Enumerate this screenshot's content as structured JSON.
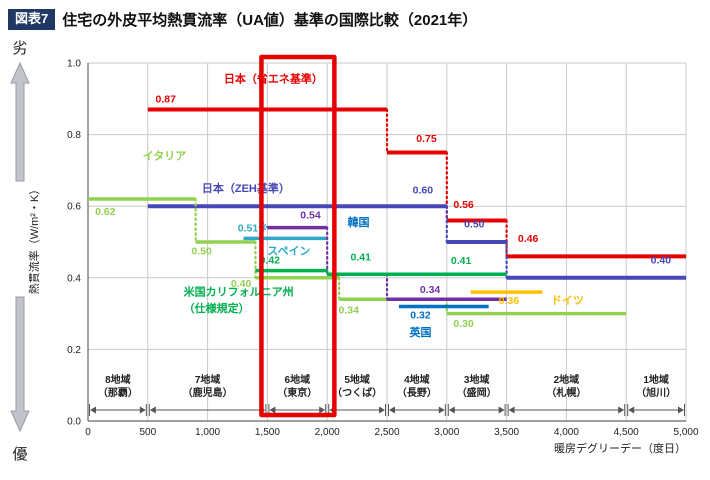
{
  "header": {
    "badge": "図表7",
    "title": "住宅の外皮平均熱貫流率（UA値）基準の国際比較（2021年）"
  },
  "chart_data": {
    "type": "line",
    "subtype": "step-comparison",
    "grid": true,
    "x": {
      "label": "暖房デグリーデー（度日）",
      "min": 0,
      "max": 5000,
      "ticks": [
        {
          "v": 0,
          "label": "0"
        },
        {
          "v": 500,
          "label": "500"
        },
        {
          "v": 1000,
          "label": "1,000"
        },
        {
          "v": 1500,
          "label": "1,500"
        },
        {
          "v": 2000,
          "label": "2,000"
        },
        {
          "v": 2500,
          "label": "2,500"
        },
        {
          "v": 3000,
          "label": "3,000"
        },
        {
          "v": 3500,
          "label": "3,500"
        },
        {
          "v": 4000,
          "label": "4,000"
        },
        {
          "v": 4500,
          "label": "4,500"
        },
        {
          "v": 5000,
          "label": "5,000"
        }
      ]
    },
    "y": {
      "label": "熱貫流率（W/m²・K）",
      "min": 0,
      "max": 1,
      "worse": "劣",
      "better": "優",
      "ticks": [
        {
          "v": 0,
          "label": "0.0"
        },
        {
          "v": 0.2,
          "label": "0.2"
        },
        {
          "v": 0.4,
          "label": "0.4"
        },
        {
          "v": 0.6,
          "label": "0.6"
        },
        {
          "v": 0.8,
          "label": "0.8"
        },
        {
          "v": 1,
          "label": "1.0"
        }
      ]
    },
    "zones": [
      {
        "name": "8地域",
        "city": "（那覇）",
        "from": 0,
        "to": 500
      },
      {
        "name": "7地域",
        "city": "（鹿児島）",
        "from": 500,
        "to": 1500
      },
      {
        "name": "6地域",
        "city": "（東京）",
        "from": 1500,
        "to": 2000
      },
      {
        "name": "5地域",
        "city": "（つくば）",
        "from": 2000,
        "to": 2500
      },
      {
        "name": "4地域",
        "city": "（長野）",
        "from": 2500,
        "to": 3000
      },
      {
        "name": "3地域",
        "city": "（盛岡）",
        "from": 3000,
        "to": 3500
      },
      {
        "name": "2地域",
        "city": "（札幌）",
        "from": 3500,
        "to": 4500
      },
      {
        "name": "1地域",
        "city": "（旭川）",
        "from": 4500,
        "to": 5000
      }
    ],
    "highlight": {
      "zone": "6地域（東京）",
      "from": 1450,
      "to": 2060,
      "color": "#e60000"
    },
    "series": [
      {
        "id": "japan_energy_std",
        "name": "日本（省エネ基準）",
        "color": "#e60000",
        "line_width": 4,
        "segments": [
          [
            500,
            2500,
            0.87
          ],
          [
            2500,
            3000,
            0.75
          ],
          [
            3000,
            3500,
            0.56
          ],
          [
            3500,
            5000,
            0.46
          ]
        ],
        "value_labels": [
          {
            "t": "0.87",
            "x": 650,
            "y": 0.89
          },
          {
            "t": "0.75",
            "x": 2830,
            "y": 0.78
          },
          {
            "t": "0.56",
            "x": 3140,
            "y": 0.595
          },
          {
            "t": "0.46",
            "x": 3680,
            "y": 0.5
          }
        ],
        "name_labels": [
          {
            "t": "日本（省エネ基準）",
            "x": 1550,
            "y": 0.945
          }
        ]
      },
      {
        "id": "japan_zeh",
        "name": "日本（ZEH基準）",
        "color": "#4747b8",
        "line_width": 4,
        "segments": [
          [
            500,
            3000,
            0.6
          ],
          [
            3000,
            3500,
            0.5
          ],
          [
            3500,
            5000,
            0.4
          ]
        ],
        "value_labels": [
          {
            "t": "0.60",
            "x": 2800,
            "y": 0.635
          },
          {
            "t": "0.50",
            "x": 3230,
            "y": 0.54
          },
          {
            "t": "0.40",
            "x": 4790,
            "y": 0.44
          }
        ],
        "name_labels": [
          {
            "t": "日本（ZEH基準）",
            "x": 1320,
            "y": 0.64
          }
        ]
      },
      {
        "id": "italy",
        "name": "イタリア",
        "color": "#92d050",
        "line_width": 3.5,
        "segments": [
          [
            0,
            900,
            0.62
          ],
          [
            900,
            1400,
            0.5
          ],
          [
            1400,
            2100,
            0.4
          ],
          [
            2100,
            3000,
            0.34
          ],
          [
            3000,
            4500,
            0.3
          ]
        ],
        "value_labels": [
          {
            "t": "0.62",
            "x": 60,
            "y": 0.575,
            "anchor": "start"
          },
          {
            "t": "0.50",
            "x": 950,
            "y": 0.465
          },
          {
            "t": "0.40",
            "x": 1280,
            "y": 0.375
          },
          {
            "t": "0.34",
            "x": 2180,
            "y": 0.3
          },
          {
            "t": "0.30",
            "x": 3140,
            "y": 0.262
          }
        ],
        "name_labels": [
          {
            "t": "イタリア",
            "x": 640,
            "y": 0.73
          }
        ]
      },
      {
        "id": "spain",
        "name": "スペイン",
        "color": "#2fa8c8",
        "line_width": 3.5,
        "segments": [
          [
            1300,
            2000,
            0.51
          ]
        ],
        "value_labels": [
          {
            "t": "0.51※",
            "x": 1380,
            "y": 0.53
          }
        ],
        "name_labels": [
          {
            "t": "スペイン",
            "x": 1680,
            "y": 0.465
          }
        ]
      },
      {
        "id": "korea",
        "name": "韓国",
        "color": "#7030a0",
        "line_width": 3.5,
        "segments": [
          [
            1500,
            2000,
            0.54
          ],
          [
            2000,
            2500,
            0.41
          ],
          [
            2500,
            3500,
            0.34
          ]
        ],
        "value_labels": [
          {
            "t": "0.54",
            "x": 1860,
            "y": 0.565
          },
          {
            "t": "0.34",
            "x": 2860,
            "y": 0.357
          }
        ],
        "name_labels": [
          {
            "t": "韓国",
            "x": 2170,
            "y": 0.545,
            "anchor": "start",
            "color": "#0070c0"
          }
        ]
      },
      {
        "id": "us_california",
        "name": "米国カリフォルニア州（仕様規定）",
        "color": "#00b050",
        "line_width": 3.5,
        "segments": [
          [
            1400,
            2000,
            0.42
          ],
          [
            2000,
            3500,
            0.41
          ]
        ],
        "value_labels": [
          {
            "t": "0.42",
            "x": 1520,
            "y": 0.44
          },
          {
            "t": "0.41",
            "x": 2280,
            "y": 0.448
          },
          {
            "t": "0.41",
            "x": 3120,
            "y": 0.438
          }
        ],
        "name_labels": [
          {
            "t": "米国カリフォルニア州",
            "x": 800,
            "y": 0.35,
            "anchor": "start"
          },
          {
            "t": "（仕様規定）",
            "x": 800,
            "y": 0.305,
            "anchor": "start"
          }
        ]
      },
      {
        "id": "germany",
        "name": "ドイツ",
        "color": "#ffc000",
        "line_width": 3.5,
        "segments": [
          [
            3200,
            3800,
            0.36
          ]
        ],
        "value_labels": [
          {
            "t": "0.36",
            "x": 3520,
            "y": 0.327
          }
        ],
        "name_labels": [
          {
            "t": "ドイツ",
            "x": 3870,
            "y": 0.327,
            "anchor": "start"
          }
        ]
      },
      {
        "id": "uk",
        "name": "英国",
        "color": "#0070c0",
        "line_width": 3.5,
        "segments": [
          [
            2600,
            3350,
            0.32
          ]
        ],
        "value_labels": [
          {
            "t": "0.32",
            "x": 2780,
            "y": 0.287
          }
        ],
        "name_labels": [
          {
            "t": "英国",
            "x": 2780,
            "y": 0.237
          }
        ]
      }
    ]
  }
}
